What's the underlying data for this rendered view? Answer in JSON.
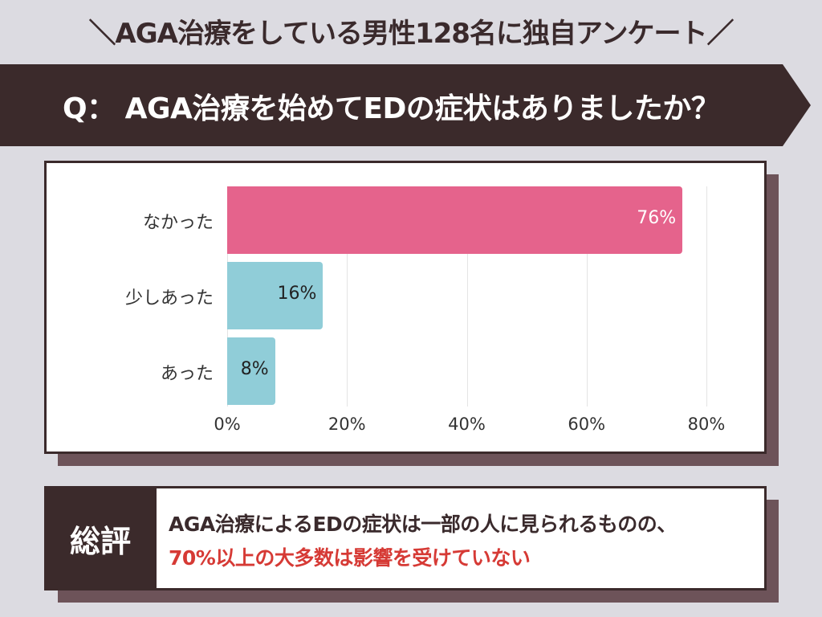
{
  "header": "＼AGA治療をしている男性128名に独自アンケート／",
  "question": "Q： AGA治療を始めてEDの症状はありましたか？",
  "colors": {
    "dark": "#3b2a2b",
    "pink": "#e5638c",
    "blue": "#90cdd8",
    "accent_red": "#d63a35"
  },
  "chart_data": {
    "type": "bar",
    "orientation": "horizontal",
    "categories": [
      "なかった",
      "少しあった",
      "あった"
    ],
    "values": [
      76,
      16,
      8
    ],
    "value_labels": [
      "76%",
      "16%",
      "8%"
    ],
    "bar_colors": [
      "#e5638c",
      "#90cdd8",
      "#90cdd8"
    ],
    "xlim": [
      0,
      80
    ],
    "x_ticks": [
      0,
      20,
      40,
      60,
      80
    ],
    "x_tick_labels": [
      "0%",
      "20%",
      "40%",
      "60%",
      "80%"
    ],
    "grid": true
  },
  "summary": {
    "label": "総評",
    "line1": "AGA治療によるEDの症状は一部の人に見られるものの、",
    "line2": "70%以上の大多数は影響を受けていない"
  }
}
